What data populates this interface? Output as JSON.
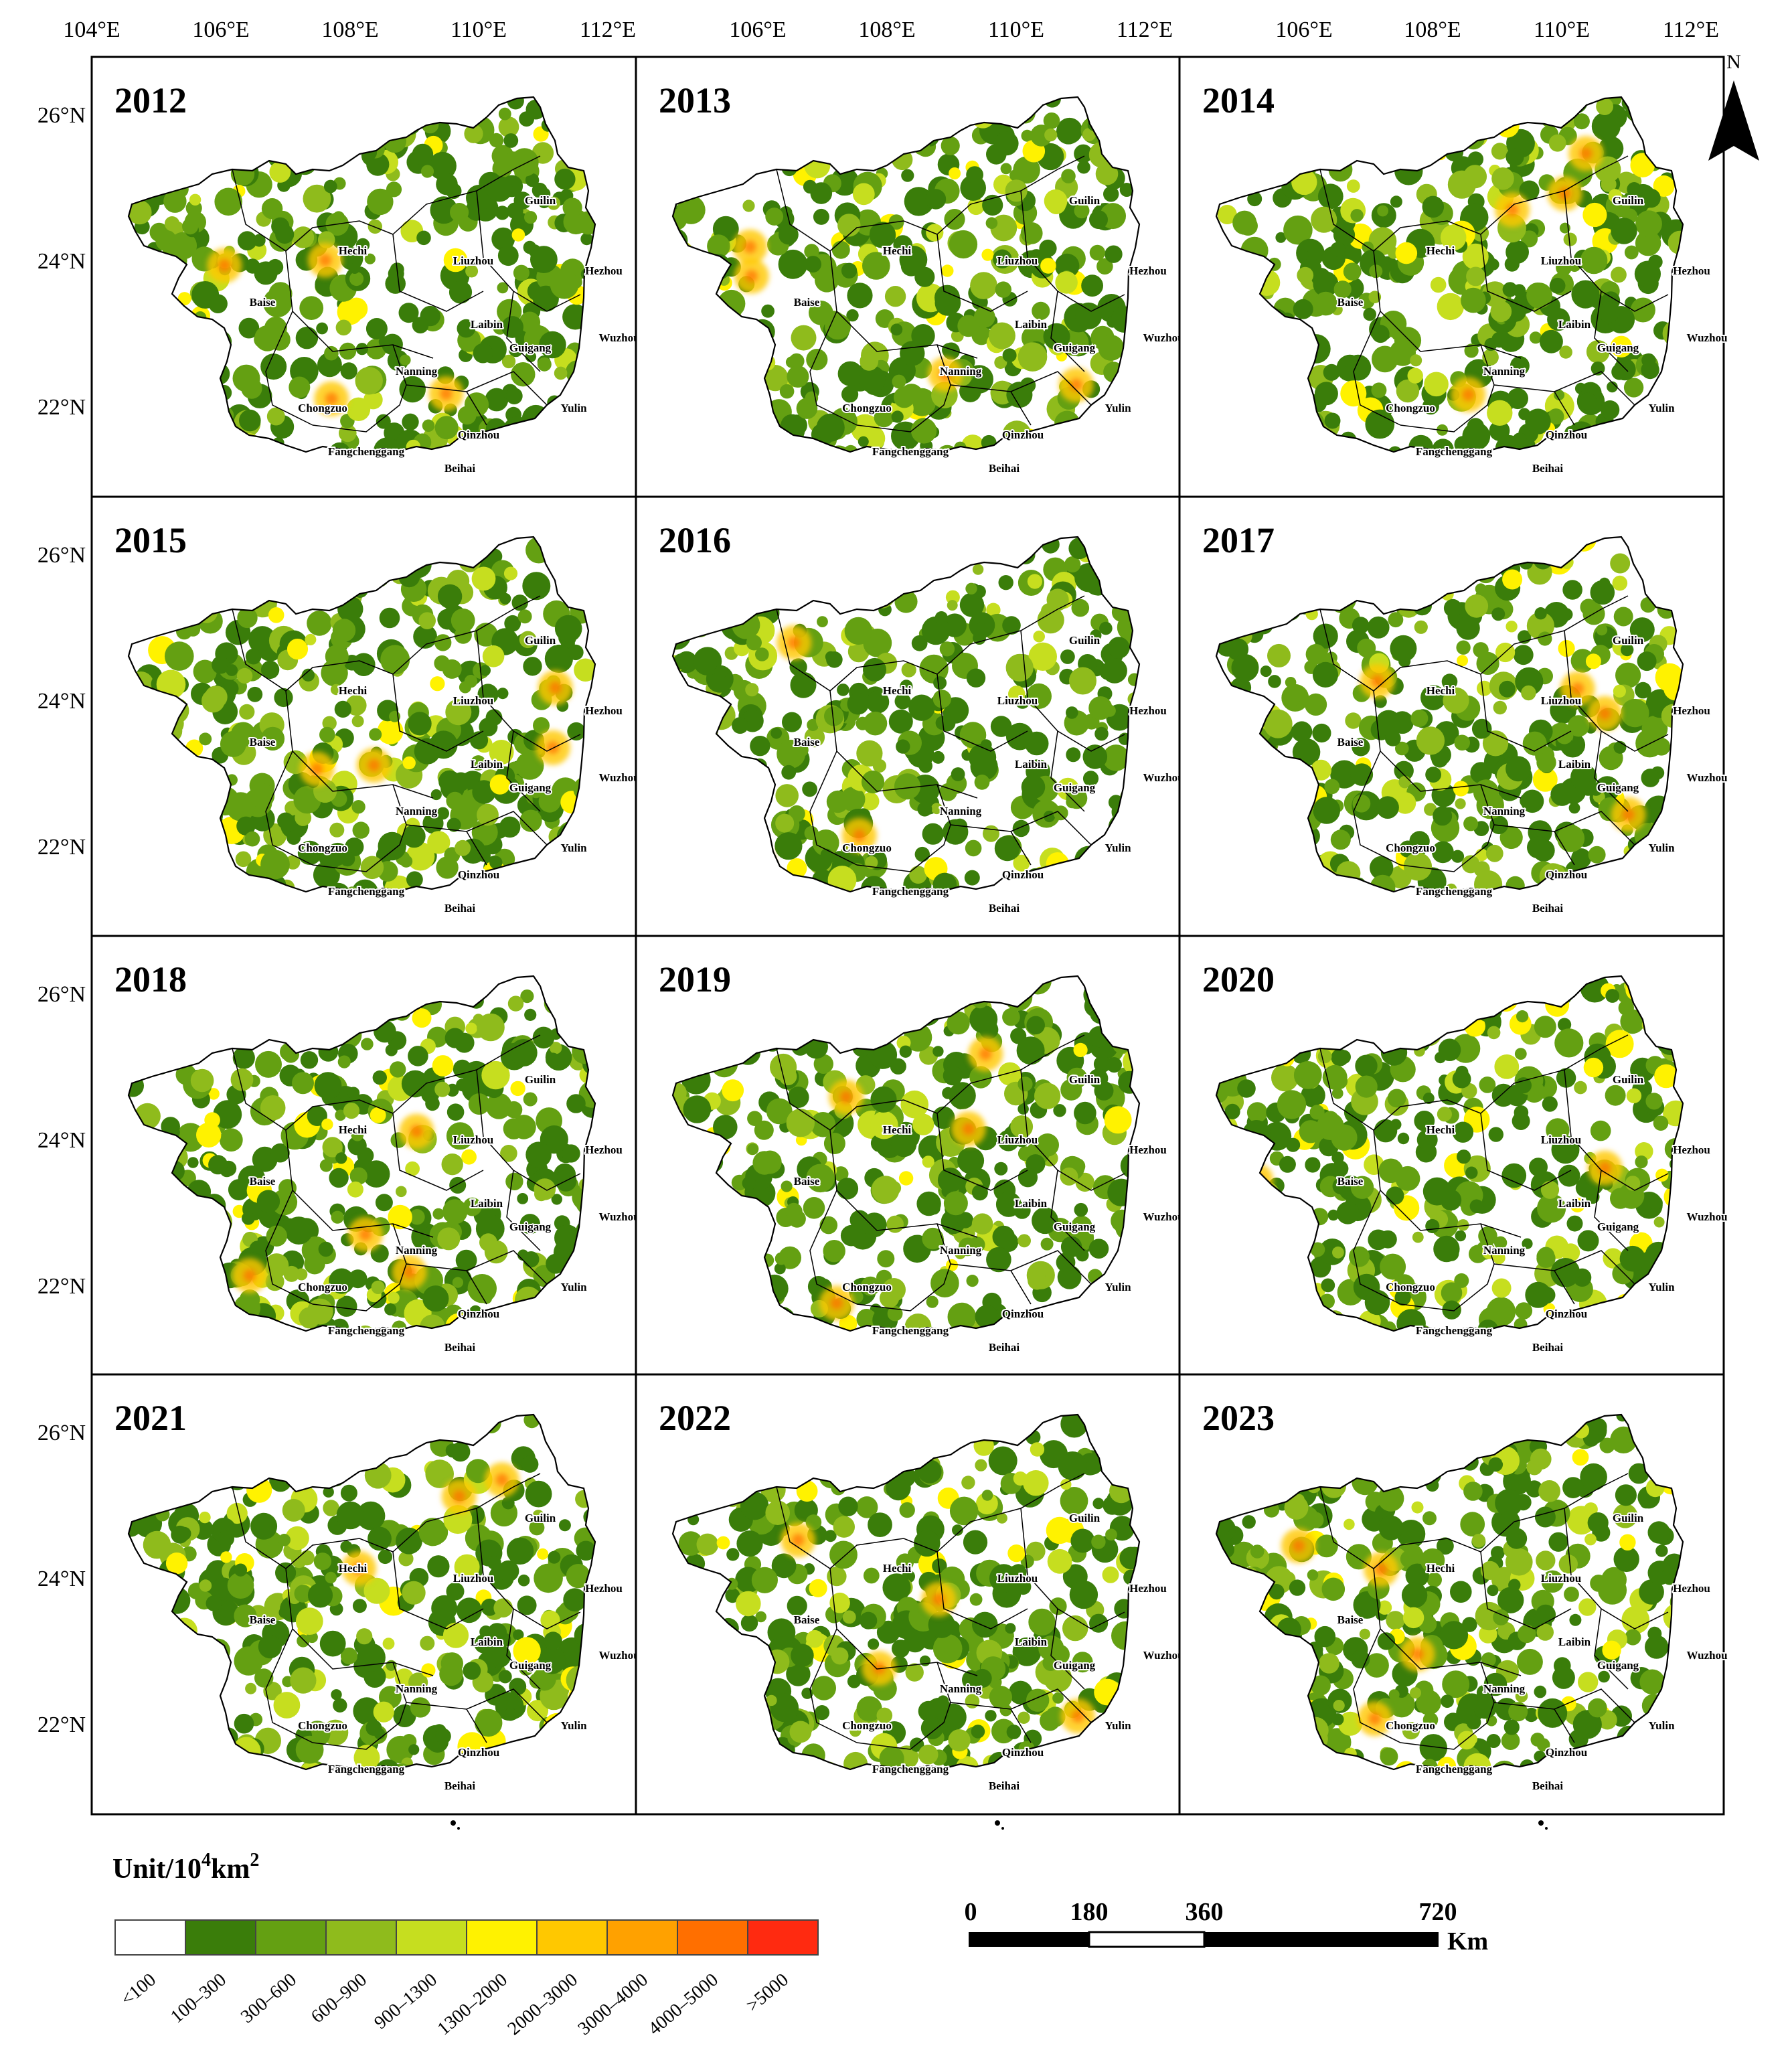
{
  "figure": {
    "top_longitude_ticks": [
      [
        "104°E",
        "106°E",
        "108°E",
        "110°E",
        "112°E"
      ],
      [
        "106°E",
        "108°E",
        "110°E",
        "112°E"
      ],
      [
        "106°E",
        "108°E",
        "110°E",
        "112°E"
      ]
    ],
    "latitude_ticks": [
      "26°N",
      "24°N",
      "22°N"
    ],
    "years": [
      "2012",
      "2013",
      "2014",
      "2015",
      "2016",
      "2017",
      "2018",
      "2019",
      "2020",
      "2021",
      "2022",
      "2023"
    ],
    "cities": [
      "Guilin",
      "Hechi",
      "Liuzhou",
      "Hezhou",
      "Baise",
      "Laibin",
      "Wuzhou",
      "Guigang",
      "Nanning",
      "Chongzuo",
      "Yulin",
      "Qinzhou",
      "Fangchenggang",
      "Beihai"
    ],
    "north_arrow": {
      "label": "N",
      "icon": "north-arrow-icon"
    }
  },
  "legend": {
    "title_main": "Unit/10",
    "title_sup1": "4",
    "title_unit": "km",
    "title_sup2": "2",
    "classes": [
      {
        "label": "<100",
        "color": "#ffffff"
      },
      {
        "label": "100–300",
        "color": "#3a7d0a"
      },
      {
        "label": "300–600",
        "color": "#64a012"
      },
      {
        "label": "600–900",
        "color": "#8fbb1c"
      },
      {
        "label": "900–1300",
        "color": "#c6de1f"
      },
      {
        "label": "1300–2000",
        "color": "#fff200"
      },
      {
        "label": "2000–3000",
        "color": "#ffc800"
      },
      {
        "label": "3000–4000",
        "color": "#ffa100"
      },
      {
        "label": "4000–5000",
        "color": "#ff6f00"
      },
      {
        "label": ">5000",
        "color": "#ff2a10"
      }
    ]
  },
  "scale_bar": {
    "labels": [
      "0",
      "180",
      "360",
      "720"
    ],
    "unit": "Km"
  }
}
